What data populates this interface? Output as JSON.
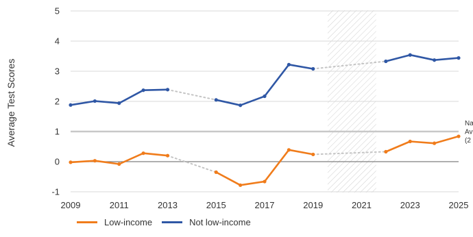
{
  "chart_data": {
    "type": "line",
    "xlabel": "",
    "ylabel": "Average Test Scores",
    "xlim": [
      2009,
      2025
    ],
    "ylim": [
      -1,
      5
    ],
    "x_ticks": [
      "2009",
      "2011",
      "2013",
      "2015",
      "2017",
      "2019",
      "2021",
      "2023",
      "2025"
    ],
    "y_ticks": [
      "5",
      "4",
      "3",
      "2",
      "1",
      "0",
      "-1"
    ],
    "grid": true,
    "shaded_region": {
      "from": 2019.6,
      "to": 2021.6,
      "pattern": "diagonal-hatch"
    },
    "reference_line": {
      "value": 1,
      "label_lines": [
        "Na",
        "Av",
        "(2"
      ]
    },
    "series": [
      {
        "name": "Low-income",
        "color": "#f07c1b",
        "points": [
          [
            2009,
            -0.02
          ],
          [
            2010,
            0.03
          ],
          [
            2011,
            -0.08
          ],
          [
            2012,
            0.28
          ],
          [
            2013,
            0.2
          ],
          [
            2015,
            -0.35
          ],
          [
            2016,
            -0.78
          ],
          [
            2017,
            -0.66
          ],
          [
            2018,
            0.39
          ],
          [
            2019,
            0.24
          ],
          [
            2022,
            0.33
          ],
          [
            2023,
            0.67
          ],
          [
            2024,
            0.61
          ],
          [
            2025,
            0.84
          ]
        ]
      },
      {
        "name": "Not low-income",
        "color": "#2f57a5",
        "points": [
          [
            2009,
            1.88
          ],
          [
            2010,
            2.01
          ],
          [
            2011,
            1.94
          ],
          [
            2012,
            2.37
          ],
          [
            2013,
            2.39
          ],
          [
            2015,
            2.05
          ],
          [
            2016,
            1.87
          ],
          [
            2017,
            2.17
          ],
          [
            2018,
            3.22
          ],
          [
            2019,
            3.08
          ],
          [
            2022,
            3.33
          ],
          [
            2023,
            3.54
          ],
          [
            2024,
            3.37
          ],
          [
            2025,
            3.44
          ]
        ]
      }
    ],
    "gaps": [
      [
        2013,
        2015
      ],
      [
        2019,
        2022
      ]
    ],
    "gap_style": "dotted-gray"
  },
  "legend": {
    "items": [
      {
        "label": "Low-income",
        "color": "#f07c1b"
      },
      {
        "label": "Not low-income",
        "color": "#2f57a5"
      }
    ]
  }
}
